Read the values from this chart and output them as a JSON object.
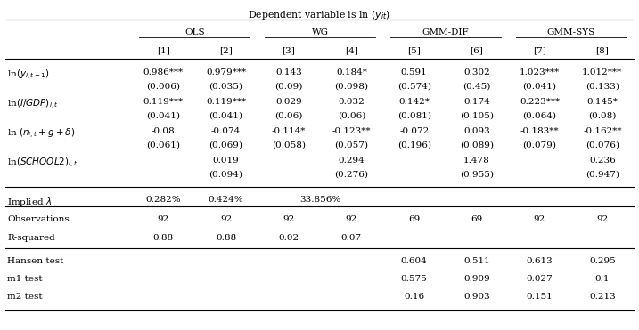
{
  "title": "Dependent variable is ln $(y_{it})$",
  "col_groups": [
    {
      "label": "OLS",
      "cols": [
        0,
        1
      ]
    },
    {
      "label": "WG",
      "cols": [
        2,
        3
      ]
    },
    {
      "label": "GMM-DIF",
      "cols": [
        4,
        5
      ]
    },
    {
      "label": "GMM-SYS",
      "cols": [
        6,
        7
      ]
    }
  ],
  "col_headers": [
    "[1]",
    "[2]",
    "[3]",
    "[4]",
    "[5]",
    "[6]",
    "[7]",
    "[8]"
  ],
  "row_labels": [
    "ln$(y_{i,t-1})$",
    "ln$(I/GDP)_{i,t}$",
    "ln $(n_{i,t}+g+\\delta)$",
    "ln$(SCHOOL2)_{i,t}$"
  ],
  "row_values": [
    [
      "0.986***",
      "0.979***",
      "0.143",
      "0.184*",
      "0.591",
      "0.302",
      "1.023***",
      "1.012***"
    ],
    [
      "0.119***",
      "0.119***",
      "0.029",
      "0.032",
      "0.142*",
      "0.174",
      "0.223***",
      "0.145*"
    ],
    [
      "-0.08",
      "-0.074",
      "-0.114*",
      "-0.123**",
      "-0.072",
      "0.093",
      "-0.183**",
      "-0.162**"
    ],
    [
      "",
      "0.019",
      "",
      "0.294",
      "",
      "1.478",
      "",
      "0.236"
    ]
  ],
  "row_se": [
    [
      "(0.006)",
      "(0.035)",
      "(0.09)",
      "(0.098)",
      "(0.574)",
      "(0.45)",
      "(0.041)",
      "(0.133)"
    ],
    [
      "(0.041)",
      "(0.041)",
      "(0.06)",
      "(0.06)",
      "(0.081)",
      "(0.105)",
      "(0.064)",
      "(0.08)"
    ],
    [
      "(0.061)",
      "(0.069)",
      "(0.058)",
      "(0.057)",
      "(0.196)",
      "(0.089)",
      "(0.079)",
      "(0.076)"
    ],
    [
      "",
      "(0.094)",
      "",
      "(0.276)",
      "",
      "(0.955)",
      "",
      "(0.947)"
    ]
  ],
  "implied_lambda": [
    "0.282%",
    "0.424%",
    "",
    "33.856%",
    "",
    "",
    "",
    ""
  ],
  "observations": [
    "92",
    "92",
    "92",
    "92",
    "69",
    "69",
    "92",
    "92"
  ],
  "r_squared": [
    "0.88",
    "0.88",
    "0.02",
    "0.07",
    "",
    "",
    "",
    ""
  ],
  "hansen_test": [
    "",
    "",
    "",
    "",
    "0.604",
    "0.511",
    "0.613",
    "0.295"
  ],
  "m1_test": [
    "",
    "",
    "",
    "",
    "0.575",
    "0.909",
    "0.027",
    "0.1"
  ],
  "m2_test": [
    "",
    "",
    "",
    "",
    "0.16",
    "0.903",
    "0.151",
    "0.213"
  ],
  "bg_color": "white",
  "text_color": "black",
  "fontsize": 7.5
}
